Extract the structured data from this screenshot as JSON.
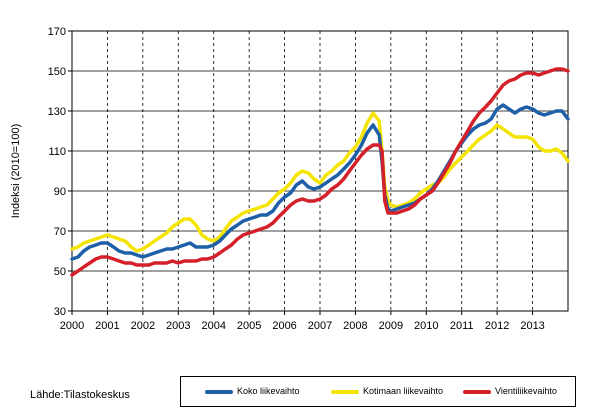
{
  "chart_data": {
    "type": "line",
    "title": "",
    "xlabel": "",
    "ylabel": "Indeksi (2010=100)",
    "ylim": [
      30,
      170
    ],
    "yticks": [
      30,
      50,
      70,
      90,
      110,
      130,
      150,
      170
    ],
    "xticks": [
      "2000",
      "2001",
      "2002",
      "2003",
      "2004",
      "2005",
      "2006",
      "2007",
      "2008",
      "2009",
      "2010",
      "2011",
      "2012",
      "2013"
    ],
    "xlim": [
      2000,
      2014
    ],
    "grid": "horizontal solid, vertical dashed",
    "legend_position": "bottom-right",
    "source": "Lähde:Tilastokeskus",
    "series": [
      {
        "name": "Koko liikevaihto",
        "color": "#1f5fa8",
        "points": [
          [
            2000.0,
            56
          ],
          [
            2000.17,
            57
          ],
          [
            2000.33,
            60
          ],
          [
            2000.5,
            62
          ],
          [
            2000.67,
            63
          ],
          [
            2000.83,
            64
          ],
          [
            2001.0,
            64
          ],
          [
            2001.17,
            62
          ],
          [
            2001.33,
            60
          ],
          [
            2001.5,
            59
          ],
          [
            2001.67,
            59
          ],
          [
            2001.83,
            58
          ],
          [
            2002.0,
            57
          ],
          [
            2002.17,
            58
          ],
          [
            2002.33,
            59
          ],
          [
            2002.5,
            60
          ],
          [
            2002.67,
            61
          ],
          [
            2002.83,
            61
          ],
          [
            2003.0,
            62
          ],
          [
            2003.17,
            63
          ],
          [
            2003.33,
            64
          ],
          [
            2003.5,
            62
          ],
          [
            2003.67,
            62
          ],
          [
            2003.83,
            62
          ],
          [
            2004.0,
            63
          ],
          [
            2004.17,
            65
          ],
          [
            2004.33,
            68
          ],
          [
            2004.5,
            71
          ],
          [
            2004.67,
            73
          ],
          [
            2004.83,
            75
          ],
          [
            2005.0,
            76
          ],
          [
            2005.17,
            77
          ],
          [
            2005.33,
            78
          ],
          [
            2005.5,
            78
          ],
          [
            2005.67,
            80
          ],
          [
            2005.83,
            84
          ],
          [
            2006.0,
            87
          ],
          [
            2006.17,
            89
          ],
          [
            2006.33,
            93
          ],
          [
            2006.5,
            95
          ],
          [
            2006.67,
            92
          ],
          [
            2006.83,
            91
          ],
          [
            2007.0,
            92
          ],
          [
            2007.17,
            94
          ],
          [
            2007.33,
            96
          ],
          [
            2007.5,
            98
          ],
          [
            2007.67,
            101
          ],
          [
            2007.83,
            104
          ],
          [
            2008.0,
            108
          ],
          [
            2008.17,
            113
          ],
          [
            2008.33,
            119
          ],
          [
            2008.5,
            123
          ],
          [
            2008.67,
            118
          ],
          [
            2008.75,
            105
          ],
          [
            2008.83,
            88
          ],
          [
            2008.92,
            81
          ],
          [
            2009.0,
            80
          ],
          [
            2009.17,
            81
          ],
          [
            2009.33,
            82
          ],
          [
            2009.5,
            83
          ],
          [
            2009.67,
            84
          ],
          [
            2009.83,
            86
          ],
          [
            2010.0,
            88
          ],
          [
            2010.17,
            91
          ],
          [
            2010.33,
            95
          ],
          [
            2010.5,
            100
          ],
          [
            2010.67,
            105
          ],
          [
            2010.83,
            110
          ],
          [
            2011.0,
            114
          ],
          [
            2011.17,
            118
          ],
          [
            2011.33,
            121
          ],
          [
            2011.5,
            123
          ],
          [
            2011.67,
            124
          ],
          [
            2011.83,
            126
          ],
          [
            2012.0,
            131
          ],
          [
            2012.17,
            133
          ],
          [
            2012.33,
            131
          ],
          [
            2012.5,
            129
          ],
          [
            2012.67,
            131
          ],
          [
            2012.83,
            132
          ],
          [
            2013.0,
            131
          ],
          [
            2013.17,
            129
          ],
          [
            2013.33,
            128
          ],
          [
            2013.5,
            129
          ],
          [
            2013.67,
            130
          ],
          [
            2013.83,
            130
          ],
          [
            2014.0,
            126
          ]
        ]
      },
      {
        "name": "Kotimaan liikevaihto",
        "color": "#f5e400",
        "points": [
          [
            2000.0,
            61
          ],
          [
            2000.17,
            62
          ],
          [
            2000.33,
            64
          ],
          [
            2000.5,
            65
          ],
          [
            2000.67,
            66
          ],
          [
            2000.83,
            67
          ],
          [
            2001.0,
            68
          ],
          [
            2001.17,
            67
          ],
          [
            2001.33,
            66
          ],
          [
            2001.5,
            65
          ],
          [
            2001.67,
            62
          ],
          [
            2001.83,
            60
          ],
          [
            2002.0,
            61
          ],
          [
            2002.17,
            63
          ],
          [
            2002.33,
            65
          ],
          [
            2002.5,
            67
          ],
          [
            2002.67,
            69
          ],
          [
            2002.83,
            72
          ],
          [
            2003.0,
            74
          ],
          [
            2003.17,
            76
          ],
          [
            2003.33,
            76
          ],
          [
            2003.5,
            73
          ],
          [
            2003.67,
            68
          ],
          [
            2003.83,
            66
          ],
          [
            2004.0,
            65
          ],
          [
            2004.17,
            67
          ],
          [
            2004.33,
            71
          ],
          [
            2004.5,
            75
          ],
          [
            2004.67,
            77
          ],
          [
            2004.83,
            79
          ],
          [
            2005.0,
            80
          ],
          [
            2005.17,
            81
          ],
          [
            2005.33,
            82
          ],
          [
            2005.5,
            83
          ],
          [
            2005.67,
            86
          ],
          [
            2005.83,
            89
          ],
          [
            2006.0,
            91
          ],
          [
            2006.17,
            94
          ],
          [
            2006.33,
            98
          ],
          [
            2006.5,
            100
          ],
          [
            2006.67,
            99
          ],
          [
            2006.83,
            96
          ],
          [
            2007.0,
            94
          ],
          [
            2007.17,
            98
          ],
          [
            2007.33,
            100
          ],
          [
            2007.5,
            103
          ],
          [
            2007.67,
            105
          ],
          [
            2007.83,
            109
          ],
          [
            2008.0,
            112
          ],
          [
            2008.17,
            117
          ],
          [
            2008.33,
            124
          ],
          [
            2008.5,
            129
          ],
          [
            2008.67,
            125
          ],
          [
            2008.75,
            110
          ],
          [
            2008.83,
            92
          ],
          [
            2008.92,
            85
          ],
          [
            2009.0,
            83
          ],
          [
            2009.17,
            82
          ],
          [
            2009.33,
            83
          ],
          [
            2009.5,
            84
          ],
          [
            2009.67,
            86
          ],
          [
            2009.83,
            89
          ],
          [
            2010.0,
            91
          ],
          [
            2010.17,
            93
          ],
          [
            2010.33,
            94
          ],
          [
            2010.5,
            97
          ],
          [
            2010.67,
            101
          ],
          [
            2010.83,
            104
          ],
          [
            2011.0,
            107
          ],
          [
            2011.17,
            110
          ],
          [
            2011.33,
            113
          ],
          [
            2011.5,
            116
          ],
          [
            2011.67,
            118
          ],
          [
            2011.83,
            120
          ],
          [
            2012.0,
            123
          ],
          [
            2012.17,
            121
          ],
          [
            2012.33,
            119
          ],
          [
            2012.5,
            117
          ],
          [
            2012.67,
            117
          ],
          [
            2012.83,
            117
          ],
          [
            2013.0,
            116
          ],
          [
            2013.17,
            112
          ],
          [
            2013.33,
            110
          ],
          [
            2013.5,
            110
          ],
          [
            2013.67,
            111
          ],
          [
            2013.83,
            109
          ],
          [
            2014.0,
            105
          ]
        ]
      },
      {
        "name": "Vientiliikevaihto",
        "color": "#d32029",
        "points": [
          [
            2000.0,
            48
          ],
          [
            2000.17,
            50
          ],
          [
            2000.33,
            52
          ],
          [
            2000.5,
            54
          ],
          [
            2000.67,
            56
          ],
          [
            2000.83,
            57
          ],
          [
            2001.0,
            57
          ],
          [
            2001.17,
            56
          ],
          [
            2001.33,
            55
          ],
          [
            2001.5,
            54
          ],
          [
            2001.67,
            54
          ],
          [
            2001.83,
            53
          ],
          [
            2002.0,
            53
          ],
          [
            2002.17,
            53
          ],
          [
            2002.33,
            54
          ],
          [
            2002.5,
            54
          ],
          [
            2002.67,
            54
          ],
          [
            2002.83,
            55
          ],
          [
            2003.0,
            54
          ],
          [
            2003.17,
            55
          ],
          [
            2003.33,
            55
          ],
          [
            2003.5,
            55
          ],
          [
            2003.67,
            56
          ],
          [
            2003.83,
            56
          ],
          [
            2004.0,
            57
          ],
          [
            2004.17,
            59
          ],
          [
            2004.33,
            61
          ],
          [
            2004.5,
            63
          ],
          [
            2004.67,
            66
          ],
          [
            2004.83,
            68
          ],
          [
            2005.0,
            69
          ],
          [
            2005.17,
            70
          ],
          [
            2005.33,
            71
          ],
          [
            2005.5,
            72
          ],
          [
            2005.67,
            74
          ],
          [
            2005.83,
            77
          ],
          [
            2006.0,
            80
          ],
          [
            2006.17,
            83
          ],
          [
            2006.33,
            85
          ],
          [
            2006.5,
            86
          ],
          [
            2006.67,
            85
          ],
          [
            2006.83,
            85
          ],
          [
            2007.0,
            86
          ],
          [
            2007.17,
            88
          ],
          [
            2007.33,
            91
          ],
          [
            2007.5,
            93
          ],
          [
            2007.67,
            96
          ],
          [
            2007.83,
            100
          ],
          [
            2008.0,
            104
          ],
          [
            2008.17,
            108
          ],
          [
            2008.33,
            111
          ],
          [
            2008.5,
            113
          ],
          [
            2008.67,
            113
          ],
          [
            2008.75,
            110
          ],
          [
            2008.83,
            85
          ],
          [
            2008.92,
            79
          ],
          [
            2009.0,
            79
          ],
          [
            2009.17,
            79
          ],
          [
            2009.33,
            80
          ],
          [
            2009.5,
            81
          ],
          [
            2009.67,
            83
          ],
          [
            2009.83,
            86
          ],
          [
            2010.0,
            88
          ],
          [
            2010.17,
            90
          ],
          [
            2010.33,
            94
          ],
          [
            2010.5,
            99
          ],
          [
            2010.67,
            104
          ],
          [
            2010.83,
            110
          ],
          [
            2011.0,
            115
          ],
          [
            2011.17,
            120
          ],
          [
            2011.33,
            125
          ],
          [
            2011.5,
            129
          ],
          [
            2011.67,
            132
          ],
          [
            2011.83,
            135
          ],
          [
            2012.0,
            139
          ],
          [
            2012.17,
            143
          ],
          [
            2012.33,
            145
          ],
          [
            2012.5,
            146
          ],
          [
            2012.67,
            148
          ],
          [
            2012.83,
            149
          ],
          [
            2013.0,
            149
          ],
          [
            2013.17,
            148
          ],
          [
            2013.33,
            149
          ],
          [
            2013.5,
            150
          ],
          [
            2013.67,
            151
          ],
          [
            2013.83,
            151
          ],
          [
            2014.0,
            150
          ]
        ]
      }
    ]
  },
  "source_label": "Lähde:Tilastokeskus"
}
